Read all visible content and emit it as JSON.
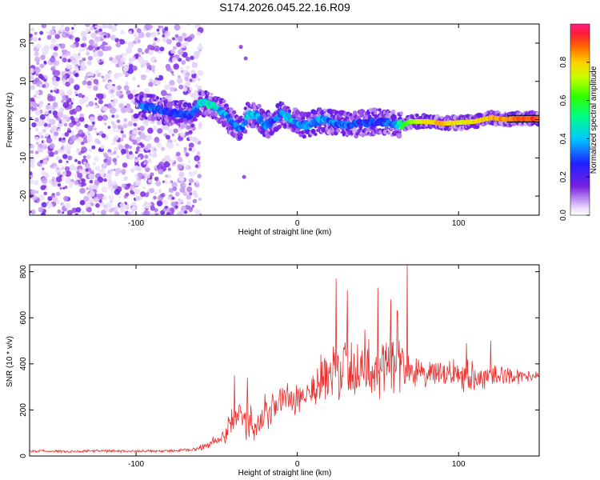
{
  "chart_data": [
    {
      "type": "heatmap",
      "title": "S174.2026.045.22.16.R09",
      "xlabel": "Height of straight line (km)",
      "ylabel": "Frequency (Hz)",
      "xlim": [
        -166,
        150
      ],
      "ylim": [
        -25,
        25
      ],
      "xticks": [
        -100,
        0,
        100
      ],
      "yticks": [
        -20,
        -10,
        0,
        10,
        20
      ],
      "xtick_labels": [
        "-100",
        "0",
        "100"
      ],
      "ytick_labels": [
        "-20",
        "-10",
        "0",
        "10",
        "20"
      ],
      "colorbar": {
        "label": "Normalized spectral amplitude",
        "range": [
          0,
          1
        ],
        "ticks": [
          0.0,
          0.2,
          0.4,
          0.6,
          0.8
        ],
        "tick_labels": [
          "0.0",
          "0.2",
          "0.4",
          "0.6",
          "0.8"
        ]
      },
      "ridge": {
        "description_values": "peak frequency (Hz) vs height (km)",
        "x": [
          -95,
          -80,
          -66,
          -60,
          -55,
          -50,
          -45,
          -40,
          -35,
          -30,
          -25,
          -20,
          -15,
          -10,
          -5,
          0,
          5,
          10,
          15,
          20,
          30,
          40,
          50,
          60,
          65,
          70,
          80,
          90,
          100,
          110,
          120,
          130,
          140,
          150
        ],
        "y": [
          3.5,
          2.0,
          1.0,
          4.5,
          4.0,
          3.0,
          1.5,
          -1.0,
          -2.5,
          1.5,
          1.0,
          -1.5,
          -0.5,
          1.5,
          0.5,
          -1.0,
          -1.5,
          -1.0,
          0.0,
          -0.5,
          -1.5,
          -1.0,
          -0.5,
          -1.0,
          -1.5,
          -0.5,
          -0.5,
          -1.0,
          -0.8,
          -0.5,
          0.5,
          0.0,
          0.3,
          0.3
        ],
        "amplitude": [
          0.35,
          0.3,
          0.3,
          0.45,
          0.5,
          0.45,
          0.4,
          0.35,
          0.35,
          0.45,
          0.4,
          0.35,
          0.3,
          0.4,
          0.45,
          0.4,
          0.35,
          0.35,
          0.4,
          0.35,
          0.35,
          0.3,
          0.3,
          0.35,
          0.6,
          0.7,
          0.8,
          0.85,
          0.8,
          0.8,
          0.85,
          0.9,
          0.95,
          0.95
        ]
      }
    },
    {
      "type": "line",
      "xlabel": "Height of straight line (km)",
      "ylabel": "SNR (10 * v/v)",
      "xlim": [
        -166,
        150
      ],
      "ylim": [
        0,
        830
      ],
      "xticks": [
        -100,
        0,
        100
      ],
      "yticks": [
        0,
        200,
        400,
        600,
        800
      ],
      "xtick_labels": [
        "-100",
        "0",
        "100"
      ],
      "ytick_labels": [
        "0",
        "200",
        "400",
        "600",
        "800"
      ],
      "series": [
        {
          "name": "SNR",
          "color": "#e8302f",
          "envelope_x": [
            -166,
            -140,
            -120,
            -100,
            -80,
            -65,
            -55,
            -50,
            -45,
            -40,
            -35,
            -30,
            -25,
            -20,
            -15,
            -10,
            -5,
            0,
            10,
            20,
            25,
            30,
            35,
            40,
            50,
            55,
            60,
            65,
            70,
            75,
            80,
            90,
            100,
            110,
            120,
            130,
            140,
            150
          ],
          "envelope_mean": [
            22,
            20,
            22,
            20,
            22,
            26,
            50,
            70,
            110,
            160,
            180,
            140,
            120,
            170,
            200,
            250,
            250,
            260,
            300,
            340,
            370,
            380,
            380,
            400,
            370,
            410,
            420,
            400,
            370,
            360,
            350,
            355,
            360,
            340,
            350,
            350,
            345,
            345
          ],
          "envelope_spread": [
            6,
            6,
            6,
            6,
            6,
            8,
            20,
            30,
            60,
            70,
            90,
            80,
            60,
            70,
            80,
            80,
            90,
            90,
            110,
            130,
            150,
            170,
            160,
            150,
            160,
            150,
            150,
            120,
            80,
            60,
            55,
            70,
            70,
            75,
            60,
            40,
            30,
            20
          ],
          "peaks": [
            {
              "x": 24,
              "y": 770
            },
            {
              "x": 31,
              "y": 720
            },
            {
              "x": 50,
              "y": 730
            },
            {
              "x": 58,
              "y": 680
            },
            {
              "x": 62,
              "y": 630
            },
            {
              "x": 68,
              "y": 830
            },
            {
              "x": -39,
              "y": 350
            },
            {
              "x": -31,
              "y": 340
            },
            {
              "x": -20,
              "y": 270
            },
            {
              "x": 120,
              "y": 500
            },
            {
              "x": 105,
              "y": 490
            }
          ]
        }
      ]
    }
  ]
}
